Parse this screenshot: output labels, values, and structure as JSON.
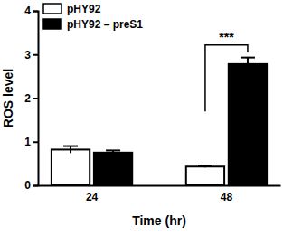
{
  "chart_data": {
    "type": "bar",
    "x_label": "Time (hr)",
    "y_label": "ROS level",
    "categories": [
      "24",
      "48"
    ],
    "series": [
      {
        "name": "pHY92",
        "color": "#ffffff",
        "values": [
          0.82,
          0.43
        ],
        "errors": [
          0.08,
          0.02
        ]
      },
      {
        "name": "pHY92 – preS1",
        "color": "#000000",
        "values": [
          0.75,
          2.78
        ],
        "errors": [
          0.05,
          0.15
        ]
      }
    ],
    "ylim": [
      0,
      4
    ],
    "yticks": [
      0,
      1,
      2,
      3,
      4
    ],
    "legend": "upper left",
    "annotations": [
      {
        "text": "***",
        "category": "48"
      }
    ]
  }
}
